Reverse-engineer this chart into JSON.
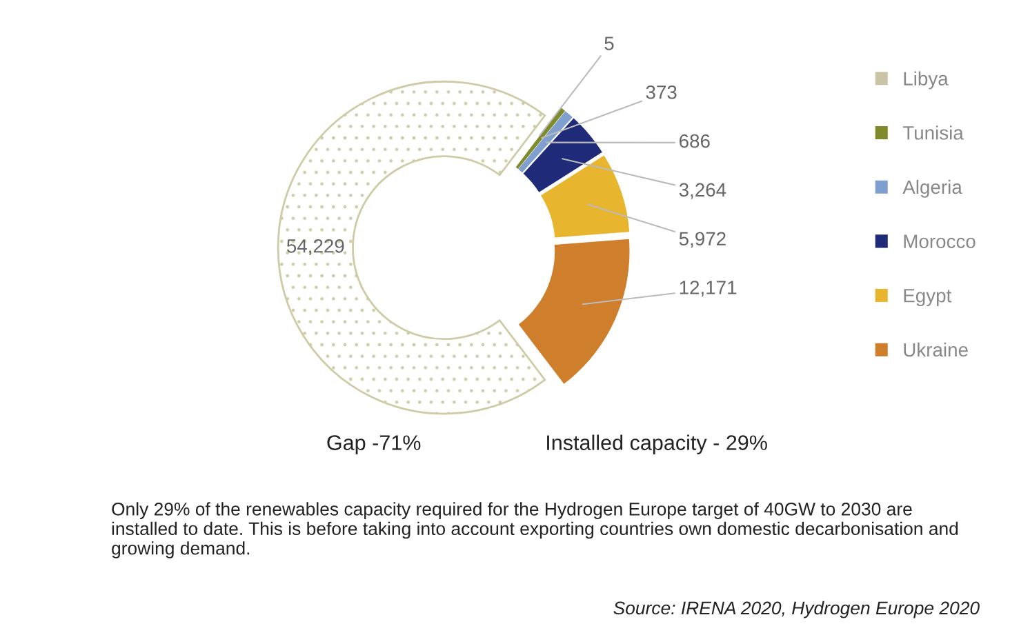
{
  "chart_data": {
    "type": "donut",
    "categories": [
      null,
      "Libya",
      "Tunisia",
      "Algeria",
      "Morocco",
      "Egypt",
      "Ukraine"
    ],
    "values": [
      54229,
      5,
      373,
      686,
      3264,
      5972,
      12171
    ],
    "value_labels": [
      "54,229",
      "5",
      "373",
      "686",
      "3,264",
      "5,972",
      "12,171"
    ],
    "colors": [
      "#cfcba6",
      "#c9c3a8",
      "#7f8a2a",
      "#7f9fd0",
      "#1f2a78",
      "#e8b52e",
      "#cf7f2c"
    ],
    "legend": "right",
    "annotations": [
      "Gap -71%",
      "Installed capacity - 29%",
      "Only 29% of the renewables capacity required for the Hydrogen Europe target of 40GW to 2030 are installed to date. This is before taking into account exporting countries own domestic decarbonisation and growing demand.",
      "Source: IRENA 2020, Hydrogen Europe 2020"
    ]
  }
}
